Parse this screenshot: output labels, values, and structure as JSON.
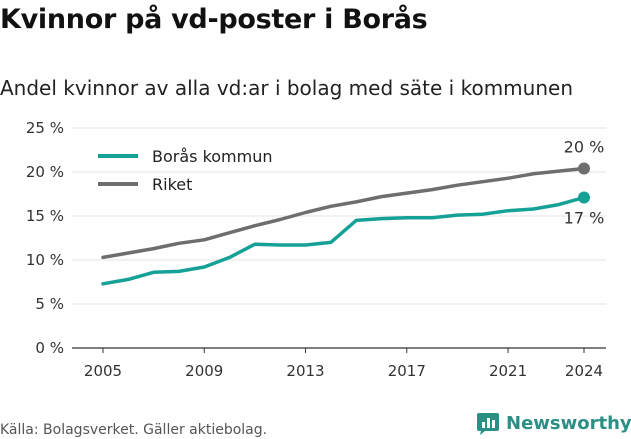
{
  "title": "Kvinnor på vd-poster i Borås",
  "subtitle": "Andel kvinnor av alla vd:ar i bolag med säte i kommunen",
  "source": "Källa: Bolagsverket. Gäller aktiebolag.",
  "brand": "Newsworthy",
  "colors": {
    "boras": "#15a196",
    "riket": "#6e6e6e",
    "grid": "#e3e3e3",
    "axis": "#333333",
    "brand": "#2a8f84"
  },
  "chart_data": {
    "type": "line",
    "x": [
      2005,
      2006,
      2007,
      2008,
      2009,
      2010,
      2011,
      2012,
      2013,
      2014,
      2015,
      2016,
      2017,
      2018,
      2019,
      2020,
      2021,
      2022,
      2023,
      2024
    ],
    "series": [
      {
        "name": "Borås kommun",
        "color": "#15a196",
        "values": [
          7.3,
          7.8,
          8.6,
          8.7,
          9.2,
          10.3,
          11.8,
          11.7,
          11.7,
          12.0,
          14.5,
          14.7,
          14.8,
          14.8,
          15.1,
          15.2,
          15.6,
          15.8,
          16.3,
          17.1
        ]
      },
      {
        "name": "Riket",
        "color": "#6e6e6e",
        "values": [
          10.3,
          10.8,
          11.3,
          11.9,
          12.3,
          13.1,
          13.9,
          14.6,
          15.4,
          16.1,
          16.6,
          17.2,
          17.6,
          18.0,
          18.5,
          18.9,
          19.3,
          19.8,
          20.1,
          20.4
        ]
      }
    ],
    "end_labels": {
      "Riket": "20 %",
      "Borås kommun": "17 %"
    },
    "xticks": [
      2005,
      2009,
      2013,
      2017,
      2021,
      2024
    ],
    "yticks": [
      0,
      5,
      10,
      15,
      20,
      25
    ],
    "ytick_labels": [
      "0 %",
      "5 %",
      "10 %",
      "15 %",
      "20 %",
      "25 %"
    ],
    "ylim": [
      0,
      25
    ],
    "xlabel": "",
    "ylabel": "",
    "grid": true,
    "legend": "top-left"
  }
}
